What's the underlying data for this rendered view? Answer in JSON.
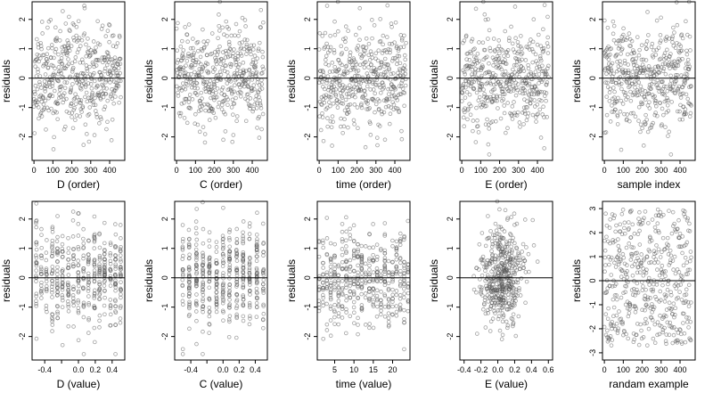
{
  "figure": {
    "background": "#ffffff",
    "point_color": "#555555",
    "line_color": "#000000"
  },
  "chart_data": [
    {
      "type": "scatter",
      "xlabel": "D (order)",
      "ylabel": "residuals",
      "xlim": [
        -10,
        480
      ],
      "ylim": [
        -2.8,
        2.6
      ],
      "xticks": [
        0,
        100,
        200,
        300,
        400
      ],
      "xtick_labels": [
        "0",
        "100",
        "200",
        "300",
        "400"
      ],
      "yticks": [
        -2,
        -1,
        0,
        1,
        2
      ],
      "ytick_labels": [
        "-2",
        "-1",
        "0",
        "1",
        "2"
      ],
      "hline": 0,
      "gen": {
        "mode": "order",
        "seed": 11,
        "n": 460,
        "spread": 0.85,
        "cap": 2.6
      }
    },
    {
      "type": "scatter",
      "xlabel": "C (order)",
      "ylabel": "residuals",
      "xlim": [
        -10,
        480
      ],
      "ylim": [
        -2.8,
        2.6
      ],
      "xticks": [
        0,
        100,
        200,
        300,
        400
      ],
      "xtick_labels": [
        "0",
        "100",
        "200",
        "300",
        "400"
      ],
      "yticks": [
        -2,
        -1,
        0,
        1,
        2
      ],
      "ytick_labels": [
        "-2",
        "-1",
        "0",
        "1",
        "2"
      ],
      "hline": 0,
      "gen": {
        "mode": "order",
        "seed": 23,
        "n": 460,
        "spread": 0.85,
        "cap": 2.6
      }
    },
    {
      "type": "scatter",
      "xlabel": "time (order)",
      "ylabel": "residuals",
      "xlim": [
        -10,
        480
      ],
      "ylim": [
        -2.8,
        2.6
      ],
      "xticks": [
        0,
        100,
        200,
        300,
        400
      ],
      "xtick_labels": [
        "0",
        "100",
        "200",
        "300",
        "400"
      ],
      "yticks": [
        -2,
        -1,
        0,
        1,
        2
      ],
      "ytick_labels": [
        "-2",
        "-1",
        "0",
        "1",
        "2"
      ],
      "hline": 0,
      "gen": {
        "mode": "order",
        "seed": 37,
        "n": 460,
        "spread": 0.85,
        "cap": 2.6
      }
    },
    {
      "type": "scatter",
      "xlabel": "E (order)",
      "ylabel": "residuals",
      "xlim": [
        -10,
        480
      ],
      "ylim": [
        -2.8,
        2.6
      ],
      "xticks": [
        0,
        100,
        200,
        300,
        400
      ],
      "xtick_labels": [
        "0",
        "100",
        "200",
        "300",
        "400"
      ],
      "yticks": [
        -2,
        -1,
        0,
        1,
        2
      ],
      "ytick_labels": [
        "-2",
        "-1",
        "0",
        "1",
        "2"
      ],
      "hline": 0,
      "gen": {
        "mode": "order",
        "seed": 41,
        "n": 460,
        "spread": 0.85,
        "cap": 2.6
      }
    },
    {
      "type": "scatter",
      "xlabel": "sample index",
      "ylabel": "residuals",
      "xlim": [
        -10,
        480
      ],
      "ylim": [
        -2.8,
        2.6
      ],
      "xticks": [
        0,
        100,
        200,
        300,
        400
      ],
      "xtick_labels": [
        "0",
        "100",
        "200",
        "300",
        "400"
      ],
      "yticks": [
        -2,
        -1,
        0,
        1,
        2
      ],
      "ytick_labels": [
        "-2",
        "-1",
        "0",
        "1",
        "2"
      ],
      "hline": 0,
      "gen": {
        "mode": "order",
        "seed": 53,
        "n": 460,
        "spread": 0.85,
        "cap": 2.6
      }
    },
    {
      "type": "scatter",
      "xlabel": "D (value)",
      "ylabel": "residuals",
      "xlim": [
        -0.55,
        0.55
      ],
      "ylim": [
        -2.8,
        2.6
      ],
      "xticks": [
        -0.4,
        -0.2,
        0.0,
        0.2,
        0.4
      ],
      "xtick_labels": [
        "-0.4",
        "",
        "0.0",
        "0.2",
        "0.4"
      ],
      "yticks": [
        -2,
        -1,
        0,
        1,
        2
      ],
      "ytick_labels": [
        "-2",
        "-1",
        "0",
        "1",
        "2"
      ],
      "hline": 0,
      "gen": {
        "mode": "levels",
        "seed": 61,
        "n": 460,
        "spread": 0.85,
        "cap": 2.6,
        "levels": [
          -0.5,
          -0.44,
          -0.38,
          -0.31,
          -0.25,
          -0.19,
          -0.12,
          -0.06,
          0.0,
          0.06,
          0.12,
          0.19,
          0.25,
          0.31,
          0.38,
          0.44,
          0.5
        ],
        "jitter": 0.004
      }
    },
    {
      "type": "scatter",
      "xlabel": "C (value)",
      "ylabel": "residuals",
      "xlim": [
        -0.6,
        0.55
      ],
      "ylim": [
        -2.8,
        2.6
      ],
      "xticks": [
        -0.4,
        -0.2,
        0.0,
        0.2,
        0.4
      ],
      "xtick_labels": [
        "-0.4",
        "",
        "0.0",
        "0.2",
        "0.4"
      ],
      "yticks": [
        -2,
        -1,
        0,
        1,
        2
      ],
      "ytick_labels": [
        "-2",
        "-1",
        "0",
        "1",
        "2"
      ],
      "hline": 0,
      "gen": {
        "mode": "levels",
        "seed": 73,
        "n": 460,
        "spread": 0.85,
        "cap": 2.6,
        "levels": [
          -0.5,
          -0.42,
          -0.33,
          -0.25,
          -0.17,
          -0.08,
          0.0,
          0.08,
          0.17,
          0.25,
          0.33,
          0.42,
          0.5
        ],
        "jitter": 0.004
      }
    },
    {
      "type": "scatter",
      "xlabel": "time (value)",
      "ylabel": "residuals",
      "xlim": [
        0.5,
        24.5
      ],
      "ylim": [
        -2.8,
        2.6
      ],
      "xticks": [
        5,
        10,
        15,
        20
      ],
      "xtick_labels": [
        "5",
        "10",
        "15",
        "20"
      ],
      "yticks": [
        -2,
        -1,
        0,
        1,
        2
      ],
      "ytick_labels": [
        "-2",
        "-1",
        "0",
        "1",
        "2"
      ],
      "hline": 0,
      "gen": {
        "mode": "levels",
        "seed": 83,
        "n": 460,
        "spread": 0.85,
        "cap": 2.6,
        "levels": [
          1,
          2,
          3,
          4,
          5,
          6,
          7,
          8,
          9,
          10,
          11,
          12,
          13,
          14,
          15,
          16,
          17,
          18,
          19,
          20,
          21,
          22,
          23,
          24
        ],
        "jitter": 0.05
      }
    },
    {
      "type": "scatter",
      "xlabel": "E (value)",
      "ylabel": "residuals",
      "xlim": [
        -0.45,
        0.65
      ],
      "ylim": [
        -2.8,
        2.6
      ],
      "xticks": [
        -0.4,
        -0.2,
        0.0,
        0.2,
        0.4,
        0.6
      ],
      "xtick_labels": [
        "-0.4",
        "-0.2",
        "0.0",
        "0.2",
        "0.4",
        "0.6"
      ],
      "yticks": [
        -2,
        -1,
        0,
        1,
        2
      ],
      "ytick_labels": [
        "-2",
        "-1",
        "0",
        "1",
        "2"
      ],
      "hline": 0,
      "gen": {
        "mode": "cloud",
        "seed": 97,
        "n": 460,
        "spread": 0.85,
        "cap": 2.6,
        "center": 0.05,
        "xspread": 0.13
      }
    },
    {
      "type": "scatter",
      "xlabel": "randam example",
      "ylabel": "residuals",
      "xlim": [
        -10,
        480
      ],
      "ylim": [
        -3.3,
        3.3
      ],
      "xticks": [
        0,
        100,
        200,
        300,
        400
      ],
      "xtick_labels": [
        "0",
        "100",
        "200",
        "300",
        "400"
      ],
      "yticks": [
        -3,
        -2,
        -1,
        0,
        1,
        2,
        3
      ],
      "ytick_labels": [
        "-3",
        "-2",
        "-1",
        "0",
        "1",
        "2",
        "3"
      ],
      "hline": 0,
      "gen": {
        "mode": "uniform",
        "seed": 101,
        "n": 460,
        "low": -2.7,
        "high": 3.0
      }
    }
  ]
}
